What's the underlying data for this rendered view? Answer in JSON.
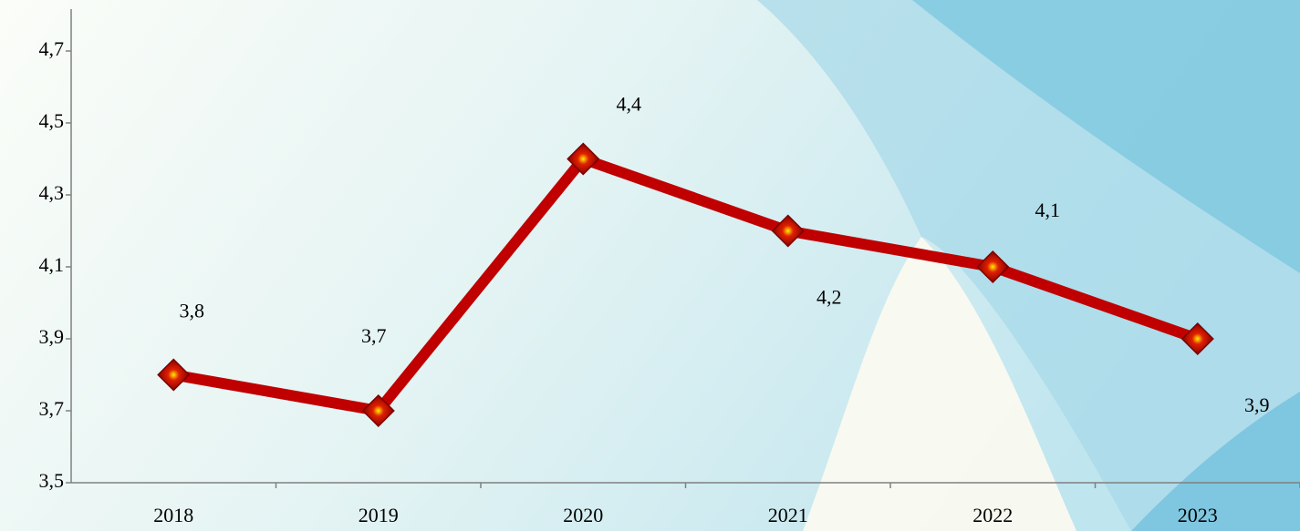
{
  "chart_data": {
    "type": "line",
    "categories": [
      "2018",
      "2019",
      "2020",
      "2021",
      "2022",
      "2023"
    ],
    "series": [
      {
        "color": "#c00000",
        "values": [
          3.8,
          3.7,
          4.4,
          4.2,
          4.1,
          3.9
        ],
        "value_labels": [
          "3,8",
          "3,7",
          "4,4",
          "4,2",
          "4,1",
          "3,9"
        ]
      }
    ],
    "ylim": [
      3.5,
      4.8
    ],
    "yticks": [
      {
        "value": 3.5,
        "label": "3,5"
      },
      {
        "value": 3.7,
        "label": "3,7"
      },
      {
        "value": 3.9,
        "label": "3,9"
      },
      {
        "value": 4.1,
        "label": "4,1"
      },
      {
        "value": 4.3,
        "label": "4,3"
      },
      {
        "value": 4.5,
        "label": "4,5"
      },
      {
        "value": 4.7,
        "label": "4,7"
      }
    ]
  }
}
